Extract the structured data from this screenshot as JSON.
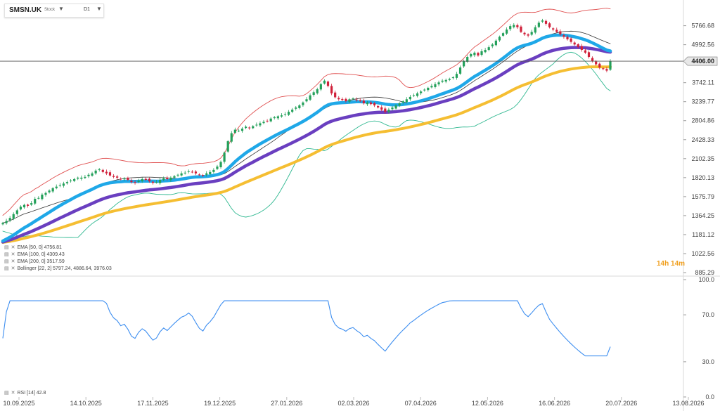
{
  "header": {
    "symbol": "SMSN.UK",
    "instrument_type": "Stock",
    "timeframe": "D1",
    "dropdown_icon": "caret-down-icon"
  },
  "indicators": [
    {
      "label": "EMA [50, 0] 4756.81",
      "color": "#1fa8e8"
    },
    {
      "label": "EMA [100, 0] 4309.43",
      "color": "#6a3fc0"
    },
    {
      "label": "EMA [200, 0] 3517.59",
      "color": "#f5be32"
    },
    {
      "label": "Bollinger [22, 2] 5797.24, 4886.64, 3976.03",
      "color": "#e05050"
    }
  ],
  "rsi": {
    "label": "RSI [14] 42.8"
  },
  "countdown": "14h 14m",
  "colors": {
    "bull": "#23a05a",
    "bear": "#d0203a",
    "ema50": "#1fa8e8",
    "ema100": "#6a3fc0",
    "ema200": "#f5be32",
    "bollinger_upper": "#e05050",
    "bollinger_mid": "#333333",
    "bollinger_lower": "#2fb890",
    "rsi_line": "#3d8ef0",
    "price_label_bg": "#e8e8e8"
  },
  "chart_data": [
    {
      "type": "candlestick",
      "title": "SMSN.UK",
      "price_axis_ticks": [
        "5766.68",
        "4992.56",
        "3742.11",
        "3239.77",
        "2804.86",
        "2428.33",
        "2102.35",
        "1820.13",
        "1575.79",
        "1364.25",
        "1181.12",
        "1022.56",
        "885.29"
      ],
      "current_price": "4406.00",
      "date_axis_ticks": [
        "10.09.2025",
        "14.10.2025",
        "17.11.2025",
        "19.12.2025",
        "27.01.2026",
        "02.03.2026",
        "07.04.2026",
        "12.05.2026",
        "16.06.2026",
        "20.07.2026",
        "13.08.2026"
      ],
      "log_scale": true,
      "close": [
        1290,
        1310,
        1340,
        1380,
        1420,
        1460,
        1480,
        1470,
        1500,
        1550,
        1560,
        1600,
        1620,
        1650,
        1680,
        1700,
        1720,
        1740,
        1760,
        1780,
        1800,
        1820,
        1820,
        1830,
        1860,
        1880,
        1920,
        1940,
        1900,
        1880,
        1850,
        1830,
        1820,
        1800,
        1810,
        1790,
        1760,
        1750,
        1780,
        1800,
        1790,
        1770,
        1750,
        1760,
        1790,
        1810,
        1800,
        1820,
        1840,
        1860,
        1880,
        1890,
        1910,
        1900,
        1880,
        1860,
        1850,
        1880,
        1900,
        1930,
        1980,
        2050,
        2200,
        2400,
        2550,
        2620,
        2600,
        2640,
        2680,
        2650,
        2690,
        2720,
        2750,
        2780,
        2800,
        2850,
        2880,
        2900,
        2920,
        2950,
        3000,
        3050,
        3100,
        3150,
        3220,
        3300,
        3400,
        3480,
        3560,
        3700,
        3800,
        3650,
        3450,
        3350,
        3300,
        3280,
        3250,
        3300,
        3320,
        3280,
        3250,
        3200,
        3220,
        3180,
        3150,
        3100,
        3050,
        3000,
        3050,
        3100,
        3150,
        3200,
        3250,
        3300,
        3360,
        3400,
        3450,
        3500,
        3550,
        3600,
        3650,
        3700,
        3750,
        3800,
        3820,
        3850,
        3900,
        4000,
        4200,
        4400,
        4550,
        4650,
        4700,
        4600,
        4750,
        4800,
        4900,
        5000,
        5150,
        5300,
        5450,
        5600,
        5750,
        5800,
        5700,
        5500,
        5400,
        5350,
        5500,
        5700,
        5900,
        6000,
        5850,
        5700,
        5600,
        5500,
        5400,
        5300,
        5200,
        5100,
        5000,
        4900,
        4800,
        4700,
        4550,
        4400,
        4300,
        4200,
        4150,
        4100,
        4406
      ],
      "series": [
        {
          "name": "EMA [50, 0]",
          "last": 4756.81
        },
        {
          "name": "EMA [100, 0]",
          "last": 4309.43
        },
        {
          "name": "EMA [200, 0]",
          "last": 3517.59
        },
        {
          "name": "Bollinger [22, 2]",
          "last": [
            5797.24,
            4886.64,
            3976.03
          ]
        }
      ]
    },
    {
      "type": "line",
      "title": "RSI [14]",
      "y_axis_ticks": [
        "100.0",
        "70.0",
        "30.0",
        "0.0"
      ],
      "ylim": [
        0,
        100
      ],
      "last": 42.8
    }
  ]
}
